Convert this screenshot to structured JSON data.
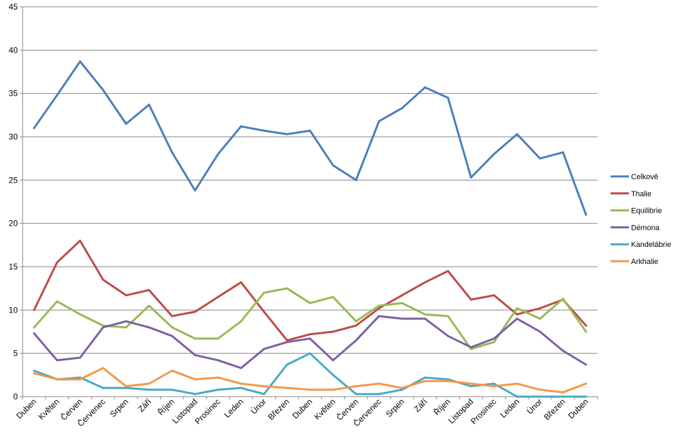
{
  "chart_data": {
    "type": "line",
    "title": "",
    "xlabel": "",
    "ylabel": "",
    "ylim": [
      0,
      45
    ],
    "yticks": [
      0,
      5,
      10,
      15,
      20,
      25,
      30,
      35,
      40,
      45
    ],
    "grid": true,
    "legend_position": "right",
    "categories": [
      "Duben",
      "Květen",
      "Červen",
      "Červenec",
      "Srpen",
      "Září",
      "Říjen",
      "Listopad",
      "Prosinec",
      "Leden",
      "Únor",
      "Březen",
      "Duben",
      "Květen",
      "Červen",
      "Červenec",
      "Srpen",
      "Září",
      "Říjen",
      "Listopad",
      "Prosinec",
      "Leden",
      "Únor",
      "Březen",
      "Duben"
    ],
    "series": [
      {
        "name": "Celkově",
        "color": "#4a7ebb",
        "values": [
          31,
          34.8,
          38.7,
          35.4,
          31.5,
          33.7,
          28.2,
          23.8,
          28,
          31.2,
          30.7,
          30.3,
          30.7,
          26.7,
          25,
          31.8,
          33.3,
          35.7,
          34.5,
          25.3,
          28,
          30.3,
          27.5,
          28.2,
          21
        ]
      },
      {
        "name": "Thalie",
        "color": "#be4b48",
        "values": [
          10,
          15.5,
          18,
          13.5,
          11.7,
          12.3,
          9.3,
          9.8,
          11.5,
          13.2,
          9.8,
          6.5,
          7.2,
          7.5,
          8.2,
          10.2,
          11.7,
          13.2,
          14.5,
          11.2,
          11.7,
          9.5,
          10.2,
          11.2,
          8.2
        ]
      },
      {
        "name": "Equilibrie",
        "color": "#98b954",
        "values": [
          8,
          11,
          9.5,
          8.2,
          8,
          10.5,
          8,
          6.7,
          6.7,
          8.7,
          12,
          12.5,
          10.8,
          11.5,
          8.7,
          10.5,
          10.8,
          9.5,
          9.3,
          5.5,
          6.3,
          10.2,
          9,
          11.3,
          7.5
        ]
      },
      {
        "name": "Démona",
        "color": "#7d60a0",
        "values": [
          7.3,
          4.2,
          4.5,
          8,
          8.7,
          8,
          7,
          4.8,
          4.2,
          3.3,
          5.5,
          6.3,
          6.7,
          4.2,
          6.5,
          9.3,
          9,
          9,
          7,
          5.7,
          6.7,
          9,
          7.5,
          5.3,
          3.7
        ]
      },
      {
        "name": "Kandelábrie",
        "color": "#46aac5",
        "values": [
          3,
          2,
          2.2,
          1,
          1,
          0.8,
          0.8,
          0.3,
          0.8,
          1,
          0.3,
          3.7,
          5,
          2.5,
          0.3,
          0.3,
          0.8,
          2.2,
          2,
          1.2,
          1.5,
          0,
          0,
          0,
          0
        ]
      },
      {
        "name": "Arkhalie",
        "color": "#f79646",
        "values": [
          2.7,
          2,
          2,
          3.3,
          1.2,
          1.5,
          3,
          2,
          2.2,
          1.5,
          1.2,
          1,
          0.8,
          0.8,
          1.2,
          1.5,
          1,
          1.8,
          1.8,
          1.5,
          1.2,
          1.5,
          0.8,
          0.5,
          1.5
        ]
      }
    ]
  }
}
